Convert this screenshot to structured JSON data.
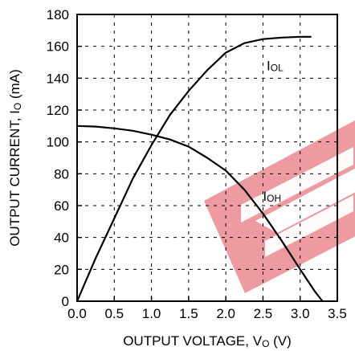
{
  "chart_data": {
    "type": "line",
    "xlabel": {
      "main": "OUTPUT VOLTAGE, V",
      "sub": "O",
      "unit": " (V)"
    },
    "ylabel": {
      "main": "OUTPUT CURRENT,  I",
      "sub": "O",
      "unit": " (mA)"
    },
    "xlim": [
      0,
      3.5
    ],
    "ylim": [
      0,
      180
    ],
    "x_ticks": [
      "0.0",
      "0.5",
      "1.0",
      "1.5",
      "2.0",
      "2.5",
      "3.0",
      "3.5"
    ],
    "y_ticks": [
      "0",
      "20",
      "40",
      "60",
      "80",
      "100",
      "120",
      "140",
      "160",
      "180"
    ],
    "grid": true,
    "series": [
      {
        "name": "IOL",
        "label_main": "I",
        "label_sub": "OL",
        "color": "#000000",
        "points": [
          [
            0,
            0
          ],
          [
            0.25,
            27
          ],
          [
            0.5,
            52
          ],
          [
            0.75,
            77
          ],
          [
            1.0,
            98
          ],
          [
            1.25,
            117
          ],
          [
            1.5,
            132
          ],
          [
            1.75,
            145
          ],
          [
            2.0,
            156
          ],
          [
            2.25,
            162
          ],
          [
            2.5,
            164.5
          ],
          [
            2.75,
            165.5
          ],
          [
            3.0,
            166
          ],
          [
            3.15,
            166
          ]
        ]
      },
      {
        "name": "IOH",
        "label_main": "I",
        "label_sub": "OH",
        "color": "#000000",
        "points": [
          [
            0,
            110
          ],
          [
            0.25,
            109.6
          ],
          [
            0.5,
            108.5
          ],
          [
            0.75,
            107
          ],
          [
            1.0,
            104.5
          ],
          [
            1.25,
            101.5
          ],
          [
            1.5,
            97
          ],
          [
            1.75,
            90
          ],
          [
            2.0,
            82
          ],
          [
            2.25,
            70
          ],
          [
            2.5,
            55
          ],
          [
            2.75,
            38
          ],
          [
            3.0,
            20
          ],
          [
            3.2,
            6
          ],
          [
            3.3,
            0
          ]
        ]
      }
    ],
    "watermark_color": "#e8828a"
  }
}
